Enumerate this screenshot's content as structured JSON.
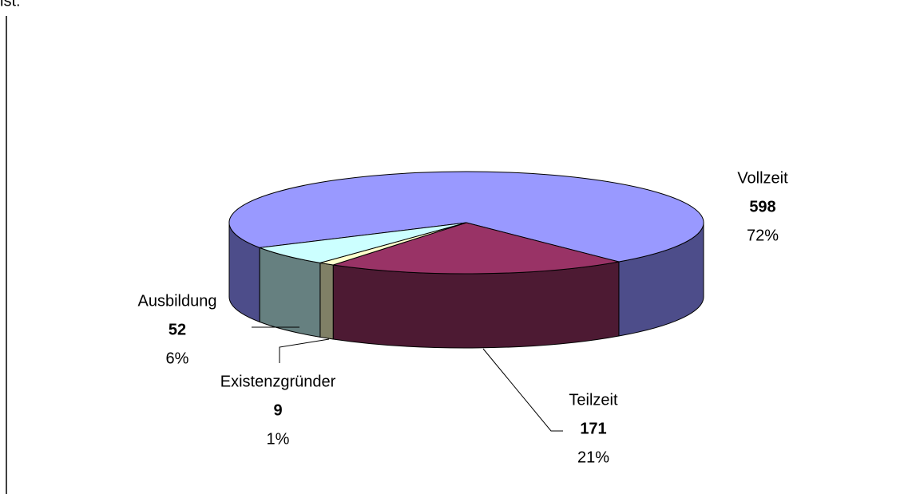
{
  "header_text": "ist:",
  "chart_data": {
    "type": "pie3d",
    "categories": [
      "Vollzeit",
      "Teilzeit",
      "Existenzgründer",
      "Ausbildung"
    ],
    "values": [
      598,
      171,
      9,
      52
    ],
    "percentages": [
      "72%",
      "21%",
      "1%",
      "6%"
    ],
    "colors": [
      "#9999ff",
      "#993366",
      "#ffffcc",
      "#ccffff"
    ],
    "side_colors": [
      "#4d4d8a",
      "#4d1a33",
      "#808066",
      "#668080"
    ]
  }
}
